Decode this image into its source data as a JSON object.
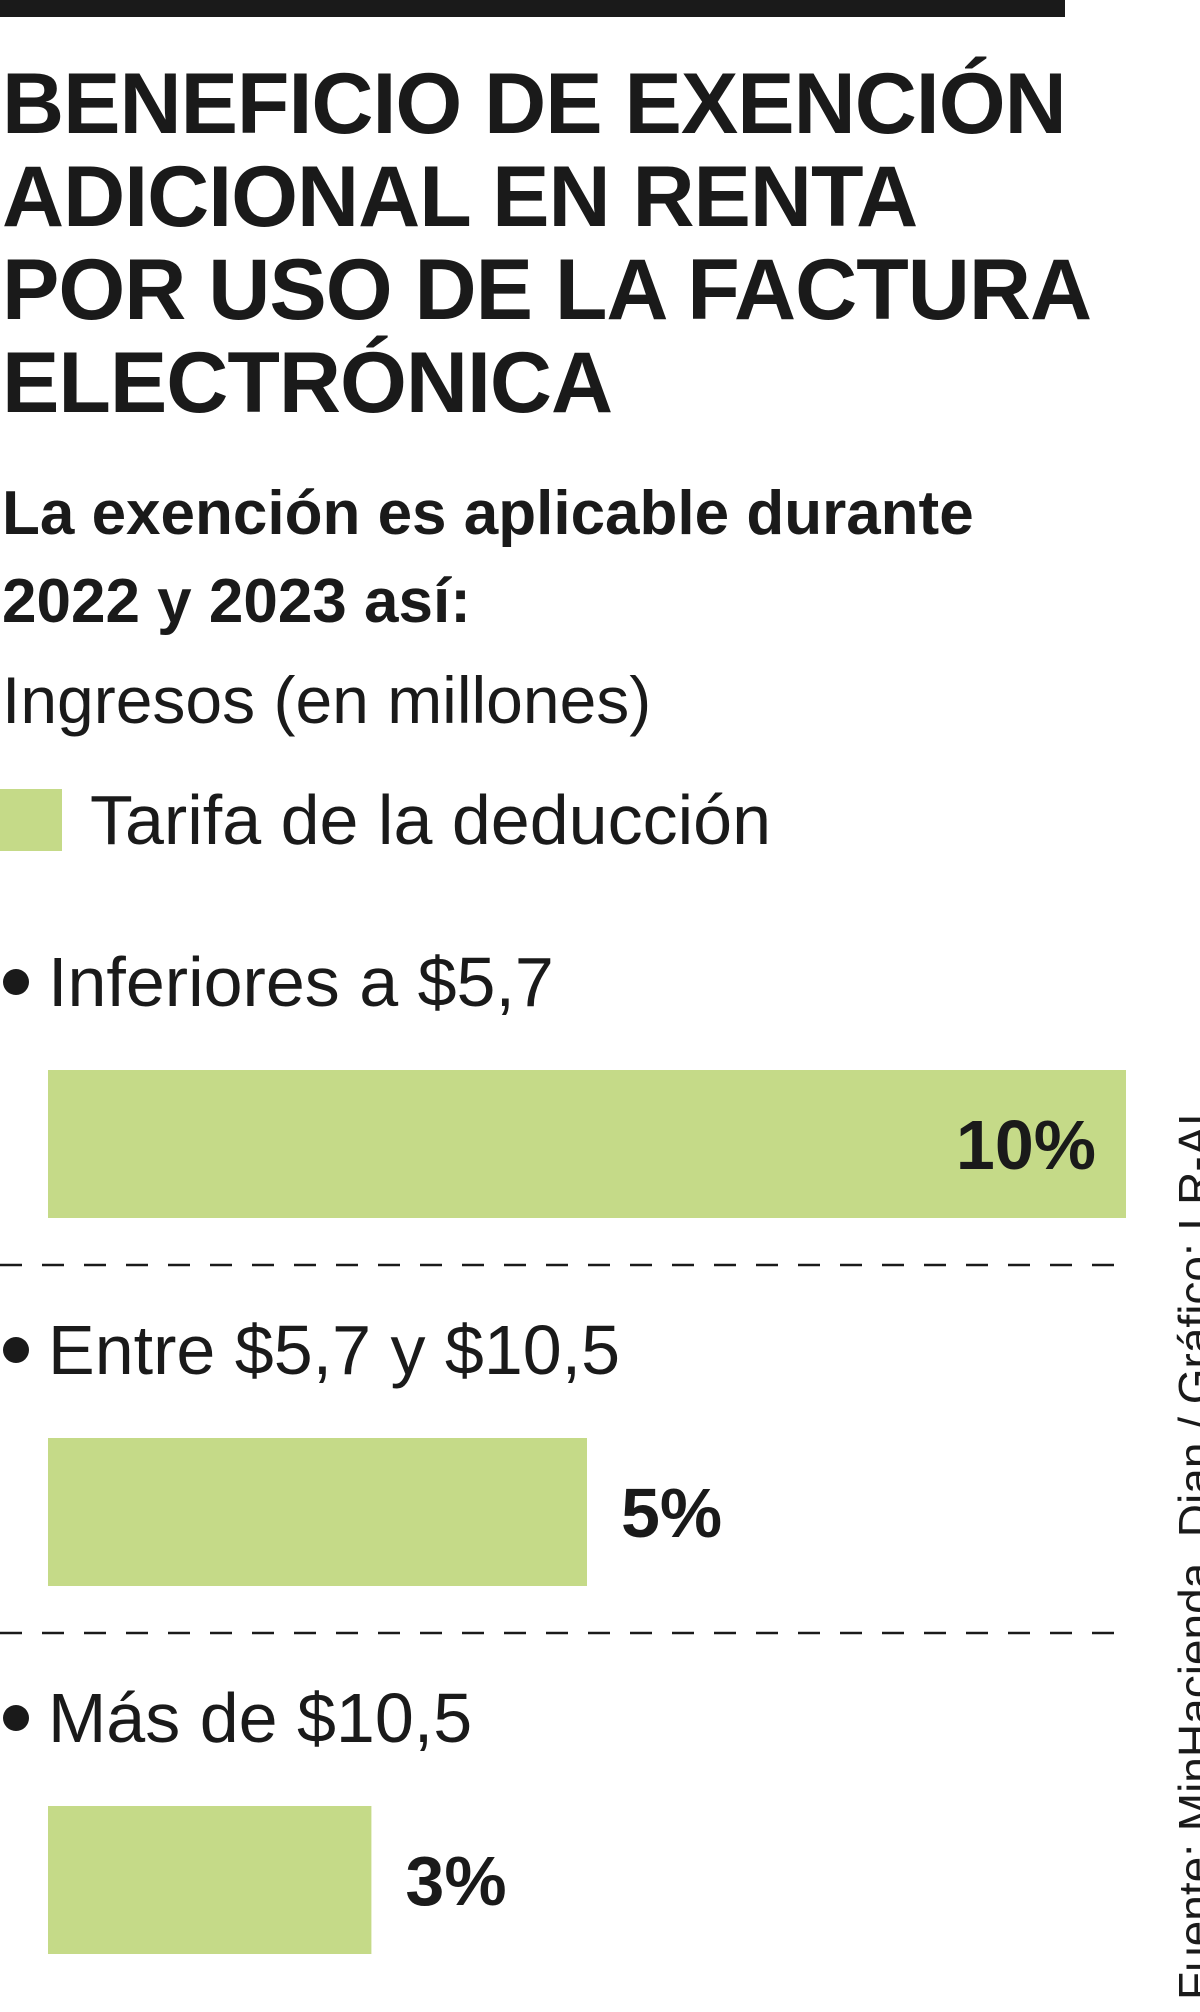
{
  "title": "BENEFICIO DE EXENCIÓN ADICIONAL EN RENTA POR USO DE LA FACTURA ELECTRÓNICA",
  "subtitle": "La exención es aplicable durante 2022 y 2023 así:",
  "units_label": "Ingresos (en millones)",
  "legend": {
    "label": "Tarifa de la deducción",
    "color": "#c5da88"
  },
  "source": "Fuente: MinHacienda, Dian / Gráfico: LR-AL",
  "chart_data": {
    "type": "bar",
    "orientation": "horizontal",
    "categories": [
      "Inferiores a $5,7",
      "Entre $5,7 y $10,5",
      "Más de $10,5"
    ],
    "series": [
      {
        "name": "Tarifa de la deducción",
        "values": [
          10,
          5,
          3
        ],
        "value_labels": [
          "10%",
          "5%",
          "3%"
        ],
        "color": "#c5da88"
      }
    ],
    "xlim": [
      0,
      10
    ],
    "grid": false,
    "separators": "dashed"
  }
}
